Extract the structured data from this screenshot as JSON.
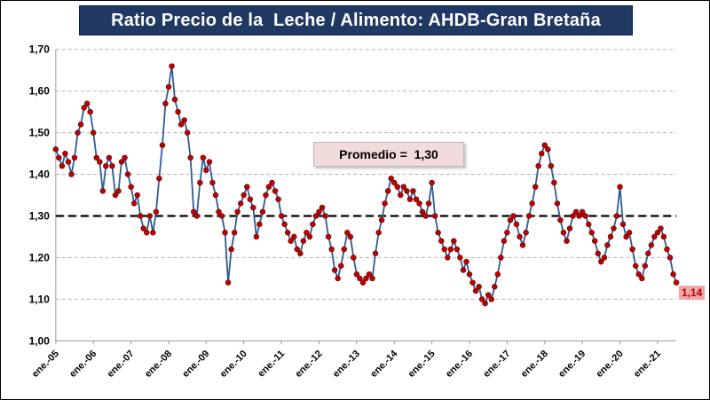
{
  "title": "Ratio Precio de la  Leche / Alimento: AHDB-Gran Bretaña",
  "annotations": {
    "average_label": "Promedio =  1,30",
    "last_value_label": "1,14"
  },
  "chart_data": {
    "type": "line",
    "title": "Ratio Precio de la  Leche / Alimento: AHDB-Gran Bretaña",
    "xlabel": "",
    "ylabel": "",
    "ylim": [
      1.0,
      1.7
    ],
    "y_ticks": [
      "1,00",
      "1,10",
      "1,20",
      "1,30",
      "1,40",
      "1,50",
      "1,60",
      "1,70"
    ],
    "x_tick_labels": [
      "ene.-05",
      "ene.-06",
      "ene.-07",
      "ene.-08",
      "ene.-09",
      "ene.-10",
      "ene.-11",
      "ene.-12",
      "ene.-13",
      "ene.-14",
      "ene.-15",
      "ene.-16",
      "ene.-17",
      "ene.-18",
      "ene.-19",
      "ene.-20",
      "ene.-21"
    ],
    "x_tick_interval_months": 12,
    "grid": "horizontal-dashed",
    "legend": "none",
    "average": 1.3,
    "last_value": 1.14,
    "series": [
      {
        "name": "Ratio Leche/Alimento",
        "values": [
          1.46,
          1.44,
          1.42,
          1.45,
          1.43,
          1.4,
          1.44,
          1.5,
          1.52,
          1.56,
          1.57,
          1.55,
          1.5,
          1.44,
          1.43,
          1.36,
          1.42,
          1.44,
          1.42,
          1.35,
          1.36,
          1.43,
          1.44,
          1.4,
          1.37,
          1.33,
          1.35,
          1.3,
          1.27,
          1.26,
          1.3,
          1.26,
          1.31,
          1.39,
          1.47,
          1.57,
          1.61,
          1.66,
          1.58,
          1.55,
          1.52,
          1.53,
          1.5,
          1.44,
          1.31,
          1.3,
          1.38,
          1.44,
          1.41,
          1.43,
          1.38,
          1.35,
          1.31,
          1.3,
          1.26,
          1.14,
          1.22,
          1.26,
          1.31,
          1.33,
          1.35,
          1.37,
          1.34,
          1.32,
          1.25,
          1.28,
          1.31,
          1.35,
          1.37,
          1.38,
          1.36,
          1.34,
          1.3,
          1.28,
          1.26,
          1.24,
          1.25,
          1.22,
          1.21,
          1.24,
          1.26,
          1.25,
          1.28,
          1.3,
          1.31,
          1.32,
          1.3,
          1.25,
          1.22,
          1.17,
          1.15,
          1.18,
          1.22,
          1.26,
          1.25,
          1.2,
          1.16,
          1.15,
          1.14,
          1.15,
          1.16,
          1.15,
          1.21,
          1.26,
          1.29,
          1.33,
          1.36,
          1.39,
          1.38,
          1.37,
          1.35,
          1.37,
          1.36,
          1.34,
          1.36,
          1.34,
          1.33,
          1.31,
          1.3,
          1.33,
          1.38,
          1.3,
          1.26,
          1.24,
          1.22,
          1.2,
          1.22,
          1.24,
          1.22,
          1.2,
          1.17,
          1.19,
          1.16,
          1.14,
          1.12,
          1.13,
          1.1,
          1.09,
          1.11,
          1.1,
          1.13,
          1.16,
          1.2,
          1.24,
          1.26,
          1.29,
          1.3,
          1.28,
          1.25,
          1.23,
          1.26,
          1.3,
          1.33,
          1.37,
          1.42,
          1.45,
          1.47,
          1.46,
          1.42,
          1.38,
          1.33,
          1.29,
          1.26,
          1.24,
          1.27,
          1.3,
          1.31,
          1.3,
          1.31,
          1.3,
          1.28,
          1.26,
          1.24,
          1.21,
          1.19,
          1.2,
          1.23,
          1.25,
          1.27,
          1.3,
          1.37,
          1.28,
          1.25,
          1.26,
          1.22,
          1.18,
          1.16,
          1.15,
          1.18,
          1.21,
          1.23,
          1.25,
          1.26,
          1.27,
          1.25,
          1.22,
          1.2,
          1.16,
          1.14
        ]
      }
    ],
    "colors": {
      "line": "#2F5B93",
      "marker": "#C00000",
      "marker_edge": "#5F0A0A",
      "average_line": "#000000",
      "grid": "#B3B3B3",
      "axis": "#9A9A9A",
      "title_bg": "#1F3864",
      "annotation_bg": "#F2DCDB",
      "last_value_bg": "#F2A5A5",
      "last_value_text": "#B00000"
    }
  }
}
